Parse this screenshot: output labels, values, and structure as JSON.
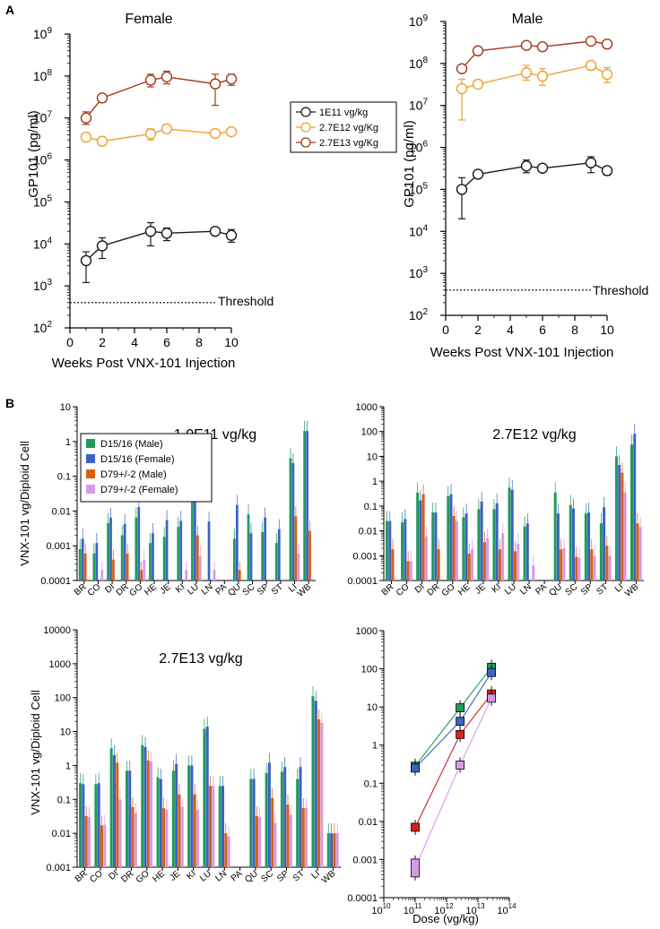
{
  "panels": {
    "a": "A",
    "b": "B"
  },
  "colors": {
    "low": "#1a1a1a",
    "mid": "#f0a030",
    "high": "#a33a1a",
    "green": "#1f9a5a",
    "blue": "#3c62c4",
    "orange": "#d9600f",
    "pink": "#d59be8",
    "red": "#d42020"
  },
  "chart_data": [
    {
      "type": "line",
      "title": "Female",
      "xlabel": "Weeks Post VNX-101 Injection",
      "ylabel": "GP101 (pg/ml)",
      "xlim": [
        0,
        10
      ],
      "xticks": [
        "0",
        "2",
        "4",
        "6",
        "8",
        "10"
      ],
      "ylim_log10": [
        2,
        9
      ],
      "yticks": [
        "10",
        "10",
        "10",
        "10",
        "10",
        "10",
        "10",
        "10"
      ],
      "ytick_exps": [
        "2",
        "3",
        "4",
        "5",
        "6",
        "7",
        "8",
        "9"
      ],
      "threshold": 400,
      "threshold_label": "Threshold",
      "series": [
        {
          "name": "1E11 vg/kg",
          "color_key": "low",
          "x": [
            1,
            2,
            5,
            6,
            9,
            10
          ],
          "y": [
            4000,
            9000,
            20000,
            18000,
            20000,
            16000
          ],
          "lo": [
            1200,
            4500,
            9000,
            12000,
            17000,
            11000
          ],
          "hi": [
            6500,
            14000,
            32000,
            24000,
            23000,
            22000
          ]
        },
        {
          "name": "2.7E12 vg/Kg",
          "color_key": "mid",
          "x": [
            1,
            2,
            5,
            6,
            9,
            10
          ],
          "y": [
            3500000,
            2800000,
            4200000,
            5500000,
            4300000,
            4700000
          ],
          "lo": [
            2800000,
            2200000,
            3000000,
            4800000,
            3800000,
            3800000
          ],
          "hi": [
            4200000,
            3400000,
            5500000,
            6300000,
            5000000,
            5600000
          ]
        },
        {
          "name": "2.7E13 vg/Kg",
          "color_key": "high",
          "x": [
            1,
            2,
            5,
            6,
            9,
            10
          ],
          "y": [
            10000000,
            30000000,
            80000000,
            95000000,
            65000000,
            85000000
          ],
          "lo": [
            7000000,
            24000000,
            55000000,
            65000000,
            20000000,
            60000000
          ],
          "hi": [
            14000000,
            36000000,
            110000000,
            130000000,
            110000000,
            110000000
          ]
        }
      ]
    },
    {
      "type": "line",
      "title": "Male",
      "xlabel": "Weeks Post VNX-101 Injection",
      "ylabel": "GP101 (pg/ml)",
      "xlim": [
        0,
        10
      ],
      "xticks": [
        "0",
        "2",
        "4",
        "6",
        "8",
        "10"
      ],
      "ylim_log10": [
        2,
        9
      ],
      "yticks": [
        "10",
        "10",
        "10",
        "10",
        "10",
        "10",
        "10",
        "10"
      ],
      "ytick_exps": [
        "2",
        "3",
        "4",
        "5",
        "6",
        "7",
        "8",
        "9"
      ],
      "threshold": 400,
      "threshold_label": "Threshold",
      "series": [
        {
          "name": "1E11 vg/kg",
          "color_key": "low",
          "x": [
            1,
            2,
            5,
            6,
            9,
            10
          ],
          "y": [
            100000,
            230000,
            360000,
            320000,
            430000,
            280000
          ],
          "lo": [
            20000,
            200000,
            250000,
            280000,
            250000,
            220000
          ],
          "hi": [
            190000,
            260000,
            500000,
            370000,
            600000,
            340000
          ]
        },
        {
          "name": "2.7E12 vg/Kg",
          "color_key": "mid",
          "x": [
            1,
            2,
            5,
            6,
            9,
            10
          ],
          "y": [
            25000000,
            32000000,
            60000000,
            50000000,
            90000000,
            55000000
          ],
          "lo": [
            4500000,
            28000000,
            40000000,
            30000000,
            70000000,
            35000000
          ],
          "hi": [
            42000000,
            36000000,
            90000000,
            75000000,
            110000000,
            80000000
          ]
        },
        {
          "name": "2.7E13 vg/Kg",
          "color_key": "high",
          "x": [
            1,
            2,
            5,
            6,
            9,
            10
          ],
          "y": [
            75000000,
            200000000,
            270000000,
            250000000,
            340000000,
            290000000
          ],
          "lo": [
            65000000,
            180000000,
            240000000,
            200000000,
            310000000,
            230000000
          ],
          "hi": [
            85000000,
            220000000,
            300000000,
            290000000,
            370000000,
            340000000
          ]
        }
      ]
    },
    {
      "type": "bar",
      "title": "1.0E11 vg/kg",
      "ylabel": "VNX-101 vg/Diploid Cell",
      "ylim_log10": [
        -4,
        1
      ],
      "yticks": [
        "0.0001",
        "0.001",
        "0.01",
        "0.1",
        "1",
        "10"
      ],
      "categories": [
        "BR",
        "CO",
        "DI",
        "DR",
        "GO",
        "HE",
        "JE",
        "KI",
        "LU",
        "LN",
        "PA",
        "QU",
        "SC",
        "SP",
        "ST",
        "LI",
        "WB"
      ],
      "legend": [
        "D15/16 (Male)",
        "D15/16 (Female)",
        "D79+/-2 (Male)",
        "D79+/-2 (Female)"
      ],
      "series": [
        {
          "name": "D15/16 (Male)",
          "color_key": "green",
          "values": [
            0.0008,
            0.0006,
            0.0045,
            0.002,
            0.0065,
            0.0012,
            0.0018,
            0.0035,
            0.022,
            null,
            null,
            0.0016,
            0.008,
            0.0025,
            0.0012,
            0.33,
            2.0
          ]
        },
        {
          "name": "D15/16 (Female)",
          "color_key": "blue",
          "values": [
            0.0016,
            0.0012,
            0.0065,
            0.0042,
            0.013,
            0.0023,
            0.0055,
            0.0052,
            0.021,
            0.005,
            null,
            0.015,
            0.0023,
            0.0065,
            0.003,
            0.24,
            2.0
          ]
        },
        {
          "name": "D79+/-2 (Male)",
          "color_key": "orange",
          "values": [
            0.0006,
            null,
            0.0004,
            0.0006,
            0.0002,
            null,
            null,
            null,
            0.002,
            null,
            null,
            0.0002,
            null,
            null,
            null,
            0.007,
            0.0027
          ]
        },
        {
          "name": "D79+/-2 (Female)",
          "color_key": "pink",
          "values": [
            null,
            0.0002,
            null,
            null,
            0.0004,
            null,
            null,
            0.0002,
            0.0005,
            0.0002,
            null,
            null,
            null,
            null,
            null,
            0.0006,
            null
          ]
        }
      ]
    },
    {
      "type": "bar",
      "title": "2.7E12 vg/kg",
      "ylabel": "",
      "ylim_log10": [
        -4,
        3
      ],
      "yticks": [
        "0.0001",
        "0.001",
        "0.01",
        "0.1",
        "1",
        "10",
        "100",
        "1000"
      ],
      "categories": [
        "BR",
        "CO",
        "DI",
        "DR",
        "GO",
        "HE",
        "JE",
        "KI",
        "LU",
        "LN",
        "PA",
        "QU",
        "SC",
        "SP",
        "ST",
        "LI",
        "WB"
      ],
      "series": [
        {
          "name": "D15/16 (Male)",
          "color_key": "green",
          "values": [
            0.025,
            0.022,
            0.35,
            0.055,
            0.25,
            0.035,
            0.075,
            0.075,
            0.55,
            0.015,
            null,
            0.35,
            0.11,
            0.05,
            0.02,
            10,
            30
          ]
        },
        {
          "name": "D15/16 (Female)",
          "color_key": "blue",
          "values": [
            0.025,
            0.03,
            0.17,
            0.055,
            0.3,
            0.05,
            0.15,
            0.13,
            0.45,
            0.02,
            null,
            0.05,
            0.08,
            0.055,
            0.09,
            4.5,
            80
          ]
        },
        {
          "name": "D79+/-2 (Male)",
          "color_key": "orange",
          "values": [
            0.0018,
            0.0006,
            0.3,
            0.0018,
            0.04,
            0.0012,
            0.0035,
            0.0018,
            0.0015,
            null,
            null,
            0.0018,
            0.0009,
            0.0018,
            0.0025,
            2.2,
            0.02
          ]
        },
        {
          "name": "D79+/-2 (Female)",
          "color_key": "pink",
          "values": [
            null,
            0.0006,
            0.006,
            null,
            0.025,
            0.0018,
            0.005,
            0.008,
            0.003,
            0.0004,
            null,
            0.002,
            0.0008,
            0.001,
            0.001,
            0.35,
            0.014
          ]
        }
      ]
    },
    {
      "type": "bar",
      "title": "2.7E13 vg/kg",
      "ylabel": "VNX-101 vg/Diploid Cell",
      "ylim_log10": [
        -3,
        4
      ],
      "yticks": [
        "0.001",
        "0.01",
        "0.1",
        "1",
        "10",
        "100",
        "1000",
        "10000"
      ],
      "categories": [
        "BR",
        "CO",
        "DI",
        "DR",
        "GO",
        "HE",
        "JE",
        "KI",
        "LU",
        "LN",
        "PA",
        "QU",
        "SC",
        "SP",
        "ST",
        "LI",
        "WB"
      ],
      "series": [
        {
          "name": "D15/16 (Male)",
          "color_key": "green",
          "values": [
            0.3,
            0.28,
            3.2,
            0.7,
            4,
            0.45,
            0.7,
            1,
            12,
            0.25,
            null,
            0.4,
            0.6,
            0.65,
            0.4,
            110,
            0.01
          ]
        },
        {
          "name": "D15/16 (Female)",
          "color_key": "blue",
          "values": [
            0.28,
            0.3,
            2,
            0.7,
            3.5,
            0.4,
            1.1,
            1,
            14,
            0.25,
            null,
            0.4,
            1.2,
            0.9,
            0.9,
            80,
            0.01
          ]
        },
        {
          "name": "D79+/-2 (Male)",
          "color_key": "orange",
          "values": [
            0.032,
            0.017,
            1.2,
            0.06,
            1.4,
            0.055,
            0.14,
            0.14,
            0.25,
            0.01,
            null,
            0.032,
            0.11,
            0.07,
            0.055,
            23,
            0.01
          ]
        },
        {
          "name": "D79+/-2 (Female)",
          "color_key": "pink",
          "values": [
            0.03,
            0.018,
            0.1,
            0.04,
            1.3,
            0.05,
            0.06,
            0.05,
            0.25,
            0.008,
            null,
            0.03,
            0.02,
            0.035,
            0.055,
            18,
            0.01
          ]
        }
      ]
    },
    {
      "type": "scatter",
      "xlabel": "Dose (vg/kg)",
      "xlim_log10": [
        10,
        14
      ],
      "xticks": [
        "10",
        "10",
        "10",
        "10",
        "10"
      ],
      "xtick_exps": [
        "10",
        "11",
        "12",
        "13",
        "14"
      ],
      "ylim_log10": [
        -4,
        3
      ],
      "yticks": [
        "0.0001",
        "0.001",
        "0.01",
        "0.1",
        "1",
        "10",
        "100",
        "1000"
      ],
      "x": [
        100000000000,
        2700000000000,
        27000000000000
      ],
      "series": [
        {
          "name": "D15/16 (Male)",
          "color_key": "green",
          "y": [
            0.28,
            9.5,
            110
          ]
        },
        {
          "name": "D15/16 (Female)",
          "color_key": "blue",
          "y": [
            0.25,
            4.2,
            80
          ]
        },
        {
          "name": "D79+/-2 (Male)",
          "color_key": "red",
          "y": [
            0.007,
            1.9,
            22
          ]
        },
        {
          "name": "D79+/-2 (Female)",
          "color_key": "pink",
          "y": [
            0.0006,
            0.3,
            17
          ]
        }
      ]
    }
  ]
}
